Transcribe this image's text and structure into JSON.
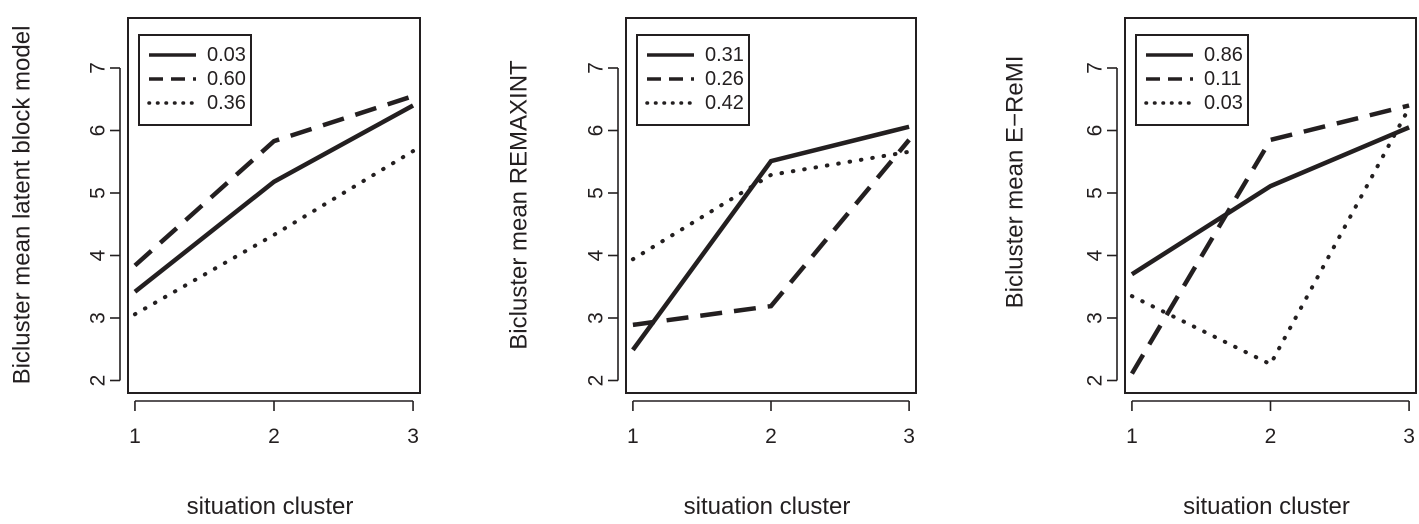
{
  "chart_data": [
    {
      "type": "line",
      "xlabel": "situation cluster",
      "ylabel": "Bicluster mean latent block model",
      "x": [
        1,
        2,
        3
      ],
      "xticks": [
        "1",
        "2",
        "3"
      ],
      "yticks": [
        "2",
        "3",
        "4",
        "5",
        "6",
        "7"
      ],
      "xlim": [
        0.95,
        3.05
      ],
      "ylim": [
        1.8,
        7.8
      ],
      "legend_position": "top-left",
      "series": [
        {
          "name": "0.03",
          "style": "solid",
          "values": [
            3.42,
            5.18,
            6.4
          ]
        },
        {
          "name": "0.60",
          "style": "dashed",
          "values": [
            3.84,
            5.83,
            6.55
          ]
        },
        {
          "name": "0.36",
          "style": "dotted",
          "values": [
            3.06,
            4.33,
            5.67
          ]
        }
      ]
    },
    {
      "type": "line",
      "xlabel": "situation cluster",
      "ylabel": "Bicluster mean REMAXINT",
      "x": [
        1,
        2,
        3
      ],
      "xticks": [
        "1",
        "2",
        "3"
      ],
      "yticks": [
        "2",
        "3",
        "4",
        "5",
        "6",
        "7"
      ],
      "xlim": [
        0.95,
        3.05
      ],
      "ylim": [
        1.8,
        7.8
      ],
      "legend_position": "top-left",
      "series": [
        {
          "name": "0.31",
          "style": "solid",
          "values": [
            2.49,
            5.51,
            6.06
          ]
        },
        {
          "name": "0.26",
          "style": "dashed",
          "values": [
            2.89,
            3.19,
            5.85
          ]
        },
        {
          "name": "0.42",
          "style": "dotted",
          "values": [
            3.94,
            5.29,
            5.66
          ]
        }
      ]
    },
    {
      "type": "line",
      "xlabel": "situation cluster",
      "ylabel": "Bicluster mean E−ReMI",
      "x": [
        1,
        2,
        3
      ],
      "xticks": [
        "1",
        "2",
        "3"
      ],
      "yticks": [
        "2",
        "3",
        "4",
        "5",
        "6",
        "7"
      ],
      "xlim": [
        0.95,
        3.05
      ],
      "ylim": [
        1.8,
        7.8
      ],
      "legend_position": "top-left",
      "series": [
        {
          "name": "0.86",
          "style": "solid",
          "values": [
            3.7,
            5.11,
            6.05
          ]
        },
        {
          "name": "0.11",
          "style": "dashed",
          "values": [
            2.11,
            5.85,
            6.4
          ]
        },
        {
          "name": "0.03",
          "style": "dotted",
          "values": [
            3.35,
            2.26,
            6.36
          ]
        }
      ]
    }
  ],
  "colors": {
    "ink": "#231f20",
    "background": "#ffffff"
  }
}
